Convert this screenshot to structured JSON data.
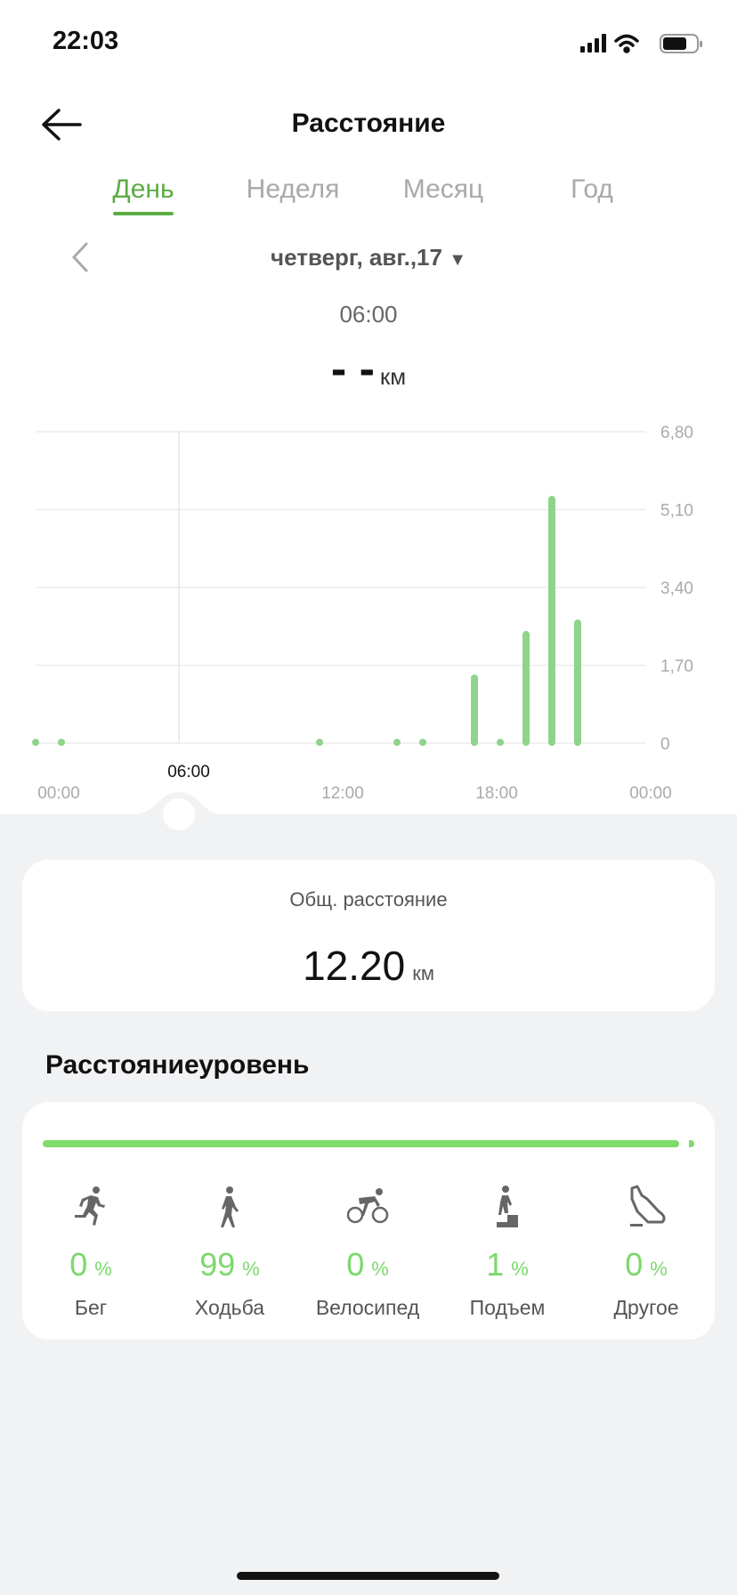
{
  "status_bar": {
    "time": "22:03"
  },
  "header": {
    "title": "Расстояние"
  },
  "tabs": [
    {
      "label": "День",
      "active": true
    },
    {
      "label": "Неделя"
    },
    {
      "label": "Месяц"
    },
    {
      "label": "Год"
    }
  ],
  "date_selector": {
    "label": "четверг, авг.,17"
  },
  "selection": {
    "time": "06:00",
    "value": "- -",
    "unit": "км"
  },
  "colors": {
    "accent": "#5cad45",
    "bar": "#8ed48a",
    "progress": "#7ddc6a"
  },
  "chart_data": {
    "type": "bar",
    "x_unit": "hour",
    "x": [
      0,
      1,
      11,
      14,
      15,
      17,
      18,
      19,
      20,
      21
    ],
    "values": [
      0.03,
      0.03,
      0.03,
      0.03,
      0.03,
      1.5,
      0.03,
      2.45,
      5.4,
      2.7
    ],
    "ylim": [
      0,
      6.8
    ],
    "yticks": [
      "6,80",
      "5,10",
      "3,40",
      "1,70",
      "0"
    ],
    "ytick_values": [
      6.8,
      5.1,
      3.4,
      1.7,
      0
    ],
    "xticks": [
      "00:00",
      "12:00",
      "18:00",
      "00:00"
    ],
    "cursor_label": "06:00",
    "grid": true
  },
  "summary": {
    "label": "Общ. расстояние",
    "value": "12.20",
    "unit": "км"
  },
  "breakdown": {
    "heading": "Расстояниеуровень",
    "progress_percent": 99,
    "items": [
      {
        "icon": "running-icon",
        "percent": "0",
        "unit": "%",
        "label": "Бег"
      },
      {
        "icon": "walking-icon",
        "percent": "99",
        "unit": "%",
        "label": "Ходьба"
      },
      {
        "icon": "cycling-icon",
        "percent": "0",
        "unit": "%",
        "label": "Велосипед"
      },
      {
        "icon": "stairs-climb-icon",
        "percent": "1",
        "unit": "%",
        "label": "Подъем"
      },
      {
        "icon": "shoe-icon",
        "percent": "0",
        "unit": "%",
        "label": "Другое"
      }
    ]
  }
}
